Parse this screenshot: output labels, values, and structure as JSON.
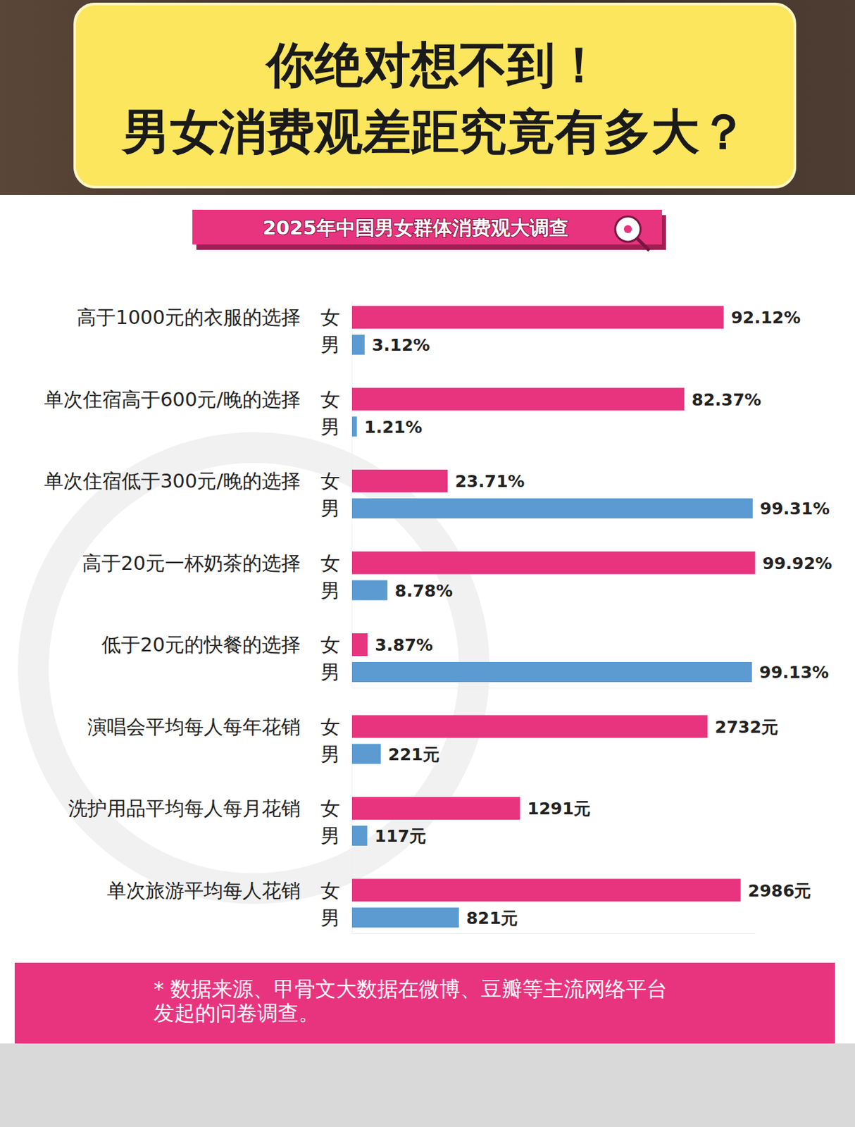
{
  "banner": {
    "lines": [
      "你绝对想不到！",
      "男女消费观差距究竟有多大？"
    ]
  },
  "chart_data": [
    {
      "type": "bar",
      "orientation": "horizontal",
      "title": "2025年中国男女群体消费观大调查",
      "categories": [
        "高于1000元的衣服的选择",
        "单次住宿高于600元/晚的选择",
        "单次住宿低于300元/晚的选择",
        "高于20元一杯奶茶的选择",
        "低于20元的快餐的选择"
      ],
      "series": [
        {
          "name": "女",
          "color": "#e8347f",
          "values": [
            92.12,
            82.37,
            23.71,
            99.92,
            3.87
          ],
          "value_labels": [
            "92.12%",
            "82.37%",
            "23.71%",
            "99.92%",
            "3.87%"
          ]
        },
        {
          "name": "男",
          "color": "#5b9bd2",
          "values": [
            3.12,
            1.21,
            99.31,
            8.78,
            99.13
          ],
          "value_labels": [
            "3.12%",
            "1.21%",
            "99.31%",
            "8.78%",
            "99.13%"
          ]
        }
      ],
      "xlim": [
        0,
        100
      ],
      "tick_labels": false,
      "grid": false,
      "data_labels": true
    },
    {
      "type": "bar",
      "orientation": "horizontal",
      "categories": [
        "演唱会平均每人每年花销",
        "洗护用品平均每人每月花销",
        "单次旅游平均每人花销"
      ],
      "series": [
        {
          "name": "女",
          "color": "#e8347f",
          "values": [
            2732,
            1291,
            2986
          ],
          "value_labels": [
            "2732元",
            "1291元",
            "2986元"
          ]
        },
        {
          "name": "男",
          "color": "#5b9bd2",
          "values": [
            221,
            117,
            821
          ],
          "value_labels": [
            "221元",
            "117元",
            "821元"
          ]
        }
      ],
      "xlim": [
        0,
        3100
      ],
      "tick_labels": false,
      "grid": false,
      "data_labels": true
    }
  ],
  "source_note": "* 数据来源、甲骨文大数据在微博、豆瓣等主流网络平台发起的问卷调查。"
}
